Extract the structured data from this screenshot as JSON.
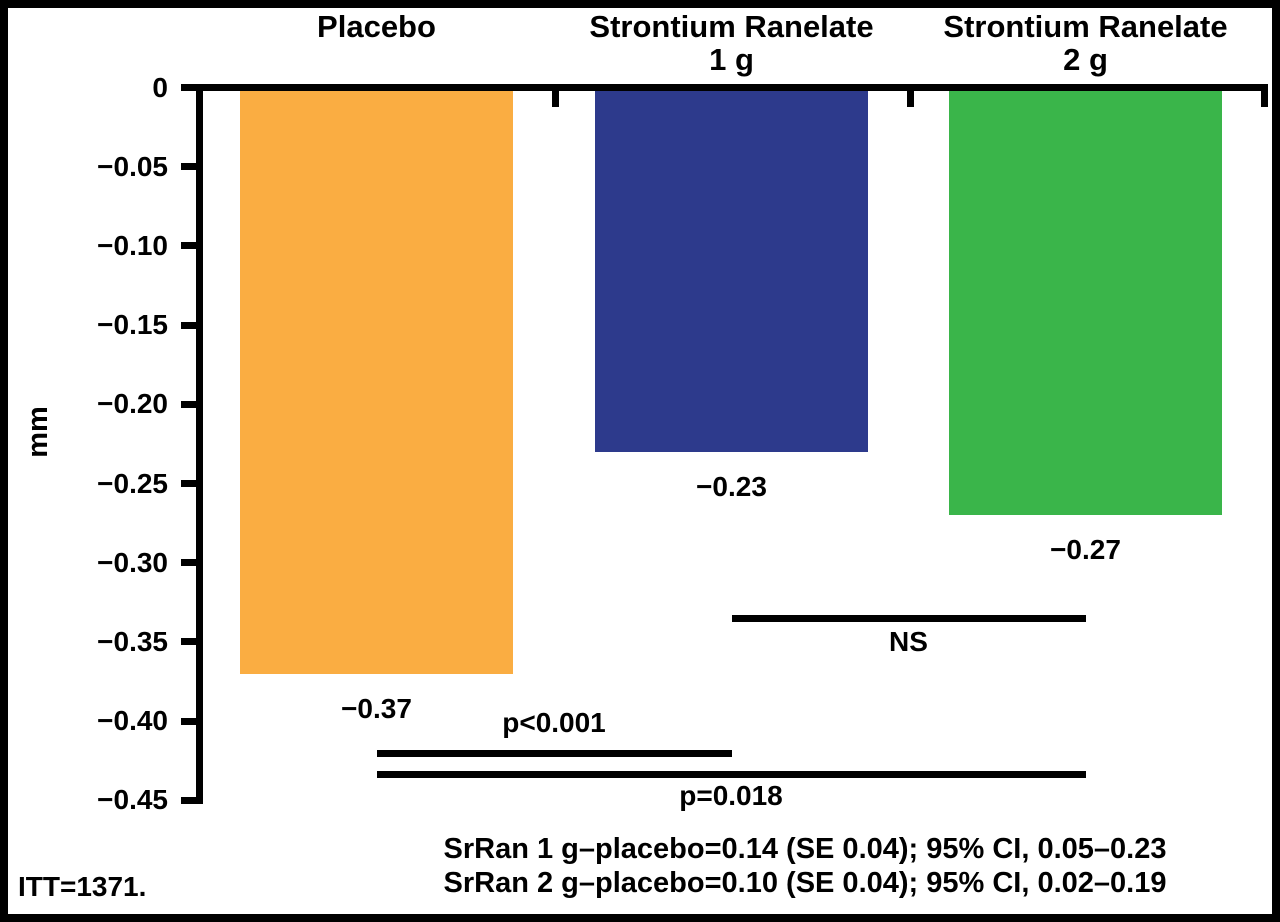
{
  "chart_data": {
    "type": "bar",
    "title": "",
    "xlabel": "",
    "ylabel": "mm",
    "ylim": [
      -0.45,
      0
    ],
    "ytick_step": 0.05,
    "yticks": [
      "0",
      "−0.05",
      "−0.10",
      "−0.15",
      "−0.20",
      "−0.25",
      "−0.30",
      "−0.35",
      "−0.40",
      "−0.45"
    ],
    "grid": false,
    "legend": "none",
    "categories": [
      {
        "lines": [
          "Placebo"
        ]
      },
      {
        "lines": [
          "Strontium Ranelate",
          "1 g"
        ]
      },
      {
        "lines": [
          "Strontium Ranelate",
          "2 g"
        ]
      }
    ],
    "values": [
      -0.37,
      -0.23,
      -0.27
    ],
    "value_labels": [
      "−0.37",
      "−0.23",
      "−0.27"
    ],
    "bar_colors": [
      "#FAAD42",
      "#2D3A8C",
      "#3AB54A"
    ],
    "axis_color": "#000000",
    "background_color": "#FFFFFF",
    "comparisons": [
      {
        "label": "NS",
        "between": [
          1,
          2
        ]
      },
      {
        "label": "p<0.001",
        "between": [
          0,
          1
        ]
      },
      {
        "label": "p=0.018",
        "between": [
          0,
          2
        ]
      }
    ],
    "annotations": [
      "SrRan 1 g–placebo=0.14 (SE 0.04); 95% CI, 0.05–0.23",
      "SrRan 2 g–placebo=0.10 (SE 0.04); 95% CI, 0.02–0.19"
    ],
    "footnote": "ITT=1371."
  }
}
